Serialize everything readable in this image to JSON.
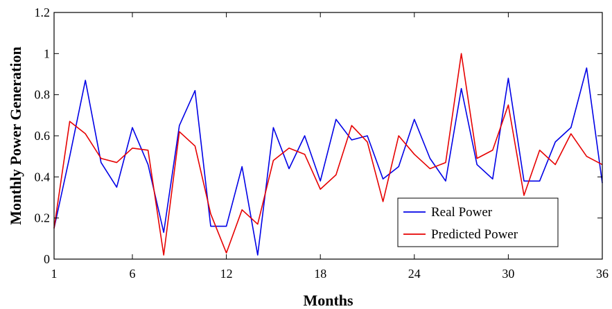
{
  "chart_data": {
    "type": "line",
    "title": "",
    "xlabel": "Months",
    "ylabel": "Monthly Power Generation",
    "xlim": [
      1,
      36
    ],
    "ylim": [
      0,
      1.2
    ],
    "x_ticks": [
      1,
      6,
      12,
      18,
      24,
      30,
      36
    ],
    "x_tick_labels": [
      "1",
      "6",
      "12",
      "18",
      "24",
      "30",
      "36"
    ],
    "y_ticks": [
      0,
      0.2,
      0.4,
      0.6,
      0.8,
      1,
      1.2
    ],
    "y_tick_labels": [
      "0",
      "0.2",
      "0.4",
      "0.6",
      "0.8",
      "1",
      "1.2"
    ],
    "grid": false,
    "legend_position": "bottom-right",
    "x": [
      1,
      2,
      3,
      4,
      5,
      6,
      7,
      8,
      9,
      10,
      11,
      12,
      13,
      14,
      15,
      16,
      17,
      18,
      19,
      20,
      21,
      22,
      23,
      24,
      25,
      26,
      27,
      28,
      29,
      30,
      31,
      32,
      33,
      34,
      35,
      36
    ],
    "series": [
      {
        "name": "Real Power",
        "color": "#0000e6",
        "values": [
          0.15,
          0.5,
          0.87,
          0.47,
          0.35,
          0.64,
          0.46,
          0.13,
          0.65,
          0.82,
          0.16,
          0.16,
          0.45,
          0.02,
          0.64,
          0.44,
          0.6,
          0.38,
          0.68,
          0.58,
          0.6,
          0.39,
          0.45,
          0.68,
          0.49,
          0.38,
          0.83,
          0.46,
          0.39,
          0.88,
          0.38,
          0.38,
          0.57,
          0.64,
          0.93,
          0.37
        ]
      },
      {
        "name": "Predicted Power",
        "color": "#e60000",
        "values": [
          0.15,
          0.67,
          0.61,
          0.49,
          0.47,
          0.54,
          0.53,
          0.02,
          0.62,
          0.55,
          0.22,
          0.03,
          0.24,
          0.17,
          0.48,
          0.54,
          0.51,
          0.34,
          0.41,
          0.65,
          0.57,
          0.28,
          0.6,
          0.51,
          0.44,
          0.47,
          1.0,
          0.49,
          0.53,
          0.75,
          0.31,
          0.53,
          0.46,
          0.61,
          0.5,
          0.46
        ]
      }
    ]
  }
}
